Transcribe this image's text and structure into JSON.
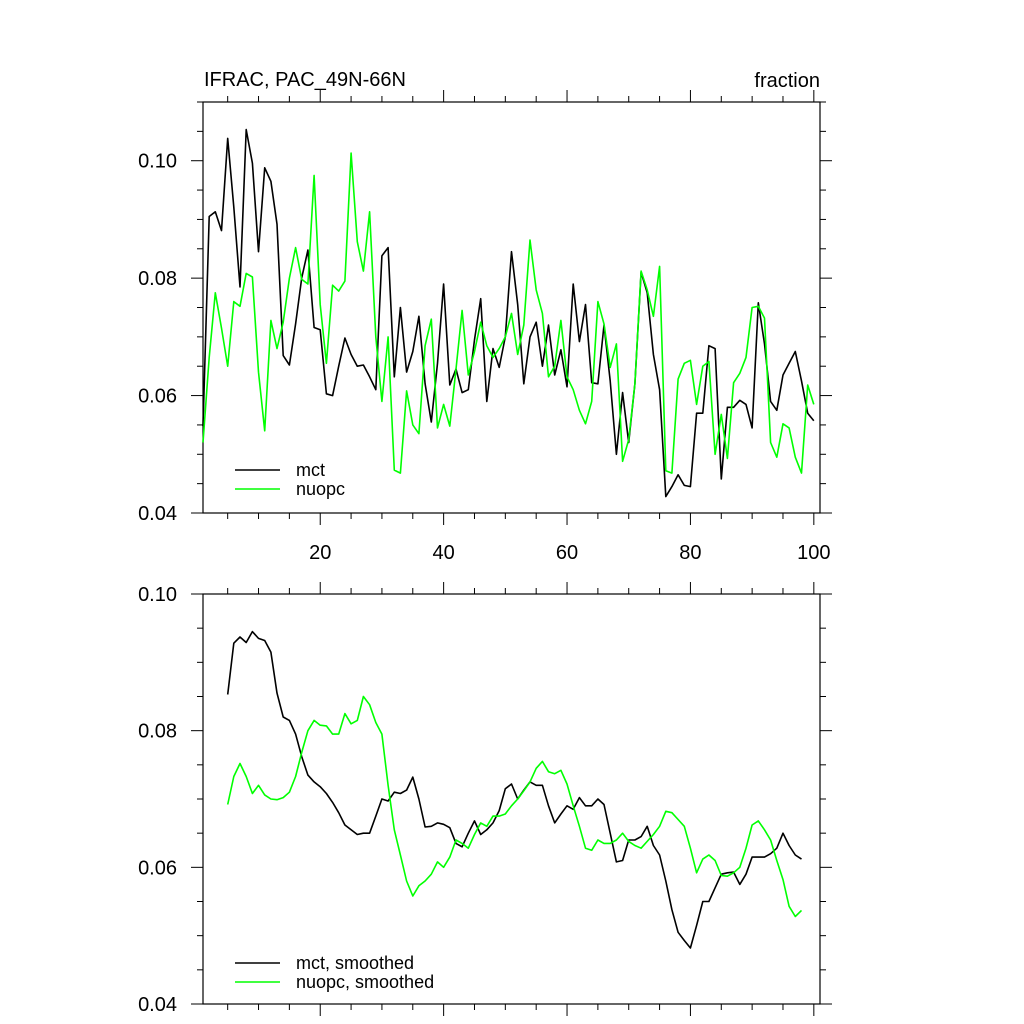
{
  "chart_data": [
    {
      "type": "line",
      "title": "IFRAC, PAC_49N-66N",
      "units": "fraction",
      "xlim": [
        1,
        101
      ],
      "ylim": [
        0.04,
        0.11
      ],
      "xticks": [
        20,
        40,
        60,
        80,
        100
      ],
      "xtick_labels": [
        "20",
        "40",
        "60",
        "80",
        "100"
      ],
      "yticks": [
        0.04,
        0.06,
        0.08,
        0.1
      ],
      "ytick_labels": [
        "0.04",
        "0.06",
        "0.08",
        "0.10"
      ],
      "legend_position": "bottom-left",
      "x_start": 1,
      "series": [
        {
          "name": "mct",
          "color": "#000000",
          "values": [
            0.0548,
            0.0905,
            0.0913,
            0.0881,
            0.1038,
            0.0921,
            0.0785,
            0.1053,
            0.0996,
            0.0845,
            0.0988,
            0.0965,
            0.0892,
            0.0668,
            0.0652,
            0.0722,
            0.08,
            0.0848,
            0.0716,
            0.0712,
            0.0603,
            0.06,
            0.065,
            0.0698,
            0.067,
            0.065,
            0.0652,
            0.0632,
            0.061,
            0.0838,
            0.0852,
            0.0632,
            0.075,
            0.064,
            0.0675,
            0.0735,
            0.062,
            0.0555,
            0.0655,
            0.079,
            0.0618,
            0.0645,
            0.0605,
            0.061,
            0.0695,
            0.0765,
            0.059,
            0.068,
            0.0648,
            0.07,
            0.0845,
            0.0755,
            0.062,
            0.07,
            0.0725,
            0.065,
            0.072,
            0.0635,
            0.0678,
            0.0615,
            0.079,
            0.0692,
            0.0755,
            0.0622,
            0.062,
            0.072,
            0.0625,
            0.05,
            0.0605,
            0.052,
            0.062,
            0.081,
            0.0775,
            0.067,
            0.061,
            0.0428,
            0.0445,
            0.0465,
            0.0447,
            0.0445,
            0.057,
            0.057,
            0.0685,
            0.068,
            0.0458,
            0.058,
            0.058,
            0.0592,
            0.0585,
            0.0545,
            0.0758,
            0.0688,
            0.059,
            0.0575,
            0.0635,
            0.0655,
            0.0675,
            0.0625,
            0.057,
            0.0557
          ]
        },
        {
          "name": "nuopc",
          "color": "#00ff00",
          "values": [
            0.052,
            0.0665,
            0.0775,
            0.0715,
            0.065,
            0.076,
            0.0752,
            0.0808,
            0.0802,
            0.064,
            0.054,
            0.0728,
            0.068,
            0.0725,
            0.08,
            0.0852,
            0.0798,
            0.079,
            0.0975,
            0.0755,
            0.0655,
            0.0788,
            0.0778,
            0.0795,
            0.1013,
            0.0862,
            0.0812,
            0.0913,
            0.07,
            0.059,
            0.07,
            0.0473,
            0.0468,
            0.0608,
            0.055,
            0.0535,
            0.0685,
            0.073,
            0.0545,
            0.0585,
            0.0548,
            0.0645,
            0.0745,
            0.0635,
            0.0675,
            0.0725,
            0.0685,
            0.0665,
            0.068,
            0.07,
            0.074,
            0.067,
            0.072,
            0.0865,
            0.078,
            0.074,
            0.0632,
            0.065,
            0.0728,
            0.0632,
            0.061,
            0.0575,
            0.0552,
            0.059,
            0.076,
            0.0722,
            0.0648,
            0.0688,
            0.0488,
            0.0525,
            0.062,
            0.0812,
            0.078,
            0.0735,
            0.082,
            0.0472,
            0.0468,
            0.0628,
            0.0655,
            0.066,
            0.0585,
            0.065,
            0.0658,
            0.05,
            0.0568,
            0.0493,
            0.0622,
            0.0638,
            0.0665,
            0.075,
            0.0752,
            0.0732,
            0.052,
            0.0495,
            0.0552,
            0.0545,
            0.0495,
            0.0468,
            0.0618,
            0.0585
          ]
        }
      ]
    },
    {
      "type": "line",
      "xlim": [
        1,
        101
      ],
      "ylim": [
        0.04,
        0.1
      ],
      "xticks": [
        20,
        40,
        60,
        80,
        100
      ],
      "yticks": [
        0.04,
        0.06,
        0.08,
        0.1
      ],
      "ytick_labels": [
        "0.04",
        "0.06",
        "0.08",
        "0.10"
      ],
      "legend_position": "bottom-left",
      "x_start": 5,
      "series": [
        {
          "name": "mct, smoothed",
          "color": "#000000",
          "values": [
            0.0853,
            0.0928,
            0.0937,
            0.0929,
            0.0945,
            0.0935,
            0.0932,
            0.0915,
            0.0855,
            0.082,
            0.0815,
            0.0795,
            0.0762,
            0.0735,
            0.0725,
            0.0718,
            0.0708,
            0.0695,
            0.068,
            0.0662,
            0.0655,
            0.0648,
            0.065,
            0.065,
            0.0675,
            0.07,
            0.0697,
            0.071,
            0.0708,
            0.0713,
            0.0732,
            0.07,
            0.0659,
            0.066,
            0.0665,
            0.0663,
            0.0658,
            0.0635,
            0.063,
            0.065,
            0.0668,
            0.0648,
            0.0655,
            0.0665,
            0.0683,
            0.0715,
            0.0722,
            0.07,
            0.0713,
            0.0725,
            0.072,
            0.072,
            0.069,
            0.0665,
            0.0678,
            0.069,
            0.0685,
            0.0702,
            0.069,
            0.069,
            0.07,
            0.0692,
            0.065,
            0.0608,
            0.061,
            0.064,
            0.064,
            0.0645,
            0.066,
            0.0632,
            0.0618,
            0.058,
            0.0538,
            0.0505,
            0.0493,
            0.0482,
            0.0515,
            0.055,
            0.055,
            0.057,
            0.059,
            0.0592,
            0.0593,
            0.0575,
            0.059,
            0.0615,
            0.0615,
            0.0615,
            0.062,
            0.0628,
            0.065,
            0.0632,
            0.0618,
            0.0612
          ]
        },
        {
          "name": "nuopc, smoothed",
          "color": "#00ff00",
          "values": [
            0.0692,
            0.0733,
            0.0752,
            0.0733,
            0.0708,
            0.072,
            0.0706,
            0.07,
            0.0699,
            0.0702,
            0.071,
            0.0733,
            0.0768,
            0.08,
            0.0815,
            0.0808,
            0.0807,
            0.0795,
            0.0795,
            0.0825,
            0.081,
            0.0815,
            0.085,
            0.0838,
            0.0812,
            0.0795,
            0.072,
            0.0655,
            0.0618,
            0.058,
            0.0558,
            0.0573,
            0.058,
            0.059,
            0.0608,
            0.06,
            0.0615,
            0.064,
            0.0635,
            0.0628,
            0.0648,
            0.0665,
            0.066,
            0.0675,
            0.0675,
            0.0678,
            0.069,
            0.07,
            0.0712,
            0.0725,
            0.0745,
            0.0755,
            0.074,
            0.0737,
            0.0742,
            0.0722,
            0.069,
            0.066,
            0.0628,
            0.0625,
            0.064,
            0.0635,
            0.0635,
            0.064,
            0.065,
            0.0638,
            0.0632,
            0.0628,
            0.0638,
            0.0648,
            0.066,
            0.0682,
            0.068,
            0.067,
            0.066,
            0.0628,
            0.0592,
            0.0612,
            0.0618,
            0.061,
            0.0588,
            0.0587,
            0.0592,
            0.06,
            0.0628,
            0.0662,
            0.0668,
            0.0655,
            0.064,
            0.061,
            0.0582,
            0.0543,
            0.0528,
            0.0537
          ]
        }
      ]
    }
  ]
}
